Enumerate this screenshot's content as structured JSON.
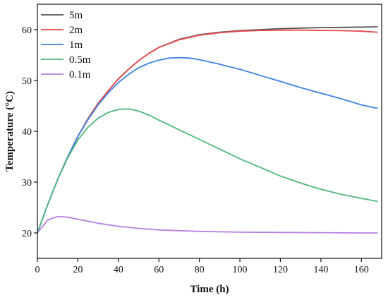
{
  "chart_data": {
    "type": "line",
    "xlabel": "Time (h)",
    "ylabel": "Temperature (°C)",
    "xlim": [
      0,
      170
    ],
    "ylim": [
      15,
      65
    ],
    "xticks": [
      0,
      20,
      40,
      60,
      80,
      100,
      120,
      140,
      160
    ],
    "yticks": [
      20,
      30,
      40,
      50,
      60
    ],
    "grid": false,
    "legend_position": "top-left",
    "series": [
      {
        "name": "5m",
        "color": "#555555",
        "x": [
          0,
          5,
          10,
          15,
          20,
          25,
          30,
          35,
          40,
          45,
          50,
          55,
          60,
          70,
          80,
          90,
          100,
          110,
          120,
          130,
          140,
          150,
          160,
          168
        ],
        "y": [
          20,
          25.5,
          30.5,
          35,
          39,
          42.5,
          45.5,
          48,
          50.3,
          52.2,
          53.9,
          55.3,
          56.5,
          58.1,
          59.0,
          59.5,
          59.8,
          60.0,
          60.2,
          60.3,
          60.4,
          60.45,
          60.5,
          60.55
        ]
      },
      {
        "name": "2m",
        "color": "#e8484b",
        "x": [
          0,
          5,
          10,
          15,
          20,
          25,
          30,
          35,
          40,
          45,
          50,
          55,
          60,
          70,
          80,
          90,
          100,
          110,
          120,
          130,
          140,
          150,
          160,
          168
        ],
        "y": [
          20,
          25.5,
          30.5,
          35,
          39,
          42.5,
          45.5,
          48,
          50.3,
          52.2,
          53.9,
          55.3,
          56.5,
          58.0,
          58.9,
          59.4,
          59.7,
          59.85,
          59.9,
          59.9,
          59.85,
          59.8,
          59.7,
          59.5
        ]
      },
      {
        "name": "1m",
        "color": "#3b82e0",
        "x": [
          0,
          5,
          10,
          15,
          20,
          25,
          30,
          35,
          40,
          45,
          50,
          55,
          60,
          65,
          70,
          75,
          80,
          90,
          100,
          110,
          120,
          130,
          140,
          150,
          160,
          168
        ],
        "y": [
          20,
          25.5,
          30.5,
          35,
          39,
          42.3,
          45.2,
          47.6,
          49.6,
          51.2,
          52.5,
          53.4,
          54.0,
          54.4,
          54.5,
          54.4,
          54.1,
          53.2,
          52.2,
          51.0,
          49.8,
          48.6,
          47.5,
          46.4,
          45.2,
          44.5
        ]
      },
      {
        "name": "0.5m",
        "color": "#4fb77e",
        "x": [
          0,
          5,
          10,
          15,
          20,
          25,
          30,
          35,
          40,
          45,
          50,
          55,
          60,
          70,
          80,
          90,
          100,
          110,
          120,
          130,
          140,
          150,
          160,
          168
        ],
        "y": [
          20,
          25.5,
          30.5,
          34.8,
          38.3,
          40.8,
          42.6,
          43.7,
          44.3,
          44.4,
          44.0,
          43.2,
          42.2,
          40.3,
          38.4,
          36.5,
          34.6,
          32.9,
          31.2,
          29.8,
          28.6,
          27.6,
          26.8,
          26.2
        ]
      },
      {
        "name": "0.1m",
        "color": "#b77fe0",
        "x": [
          0,
          3,
          5,
          8,
          10,
          12,
          15,
          20,
          25,
          30,
          40,
          50,
          60,
          80,
          100,
          120,
          140,
          160,
          168
        ],
        "y": [
          20,
          21.5,
          22.5,
          23.0,
          23.2,
          23.2,
          23.1,
          22.7,
          22.3,
          21.9,
          21.3,
          20.9,
          20.6,
          20.3,
          20.15,
          20.1,
          20.05,
          20.0,
          20.0
        ]
      }
    ]
  }
}
